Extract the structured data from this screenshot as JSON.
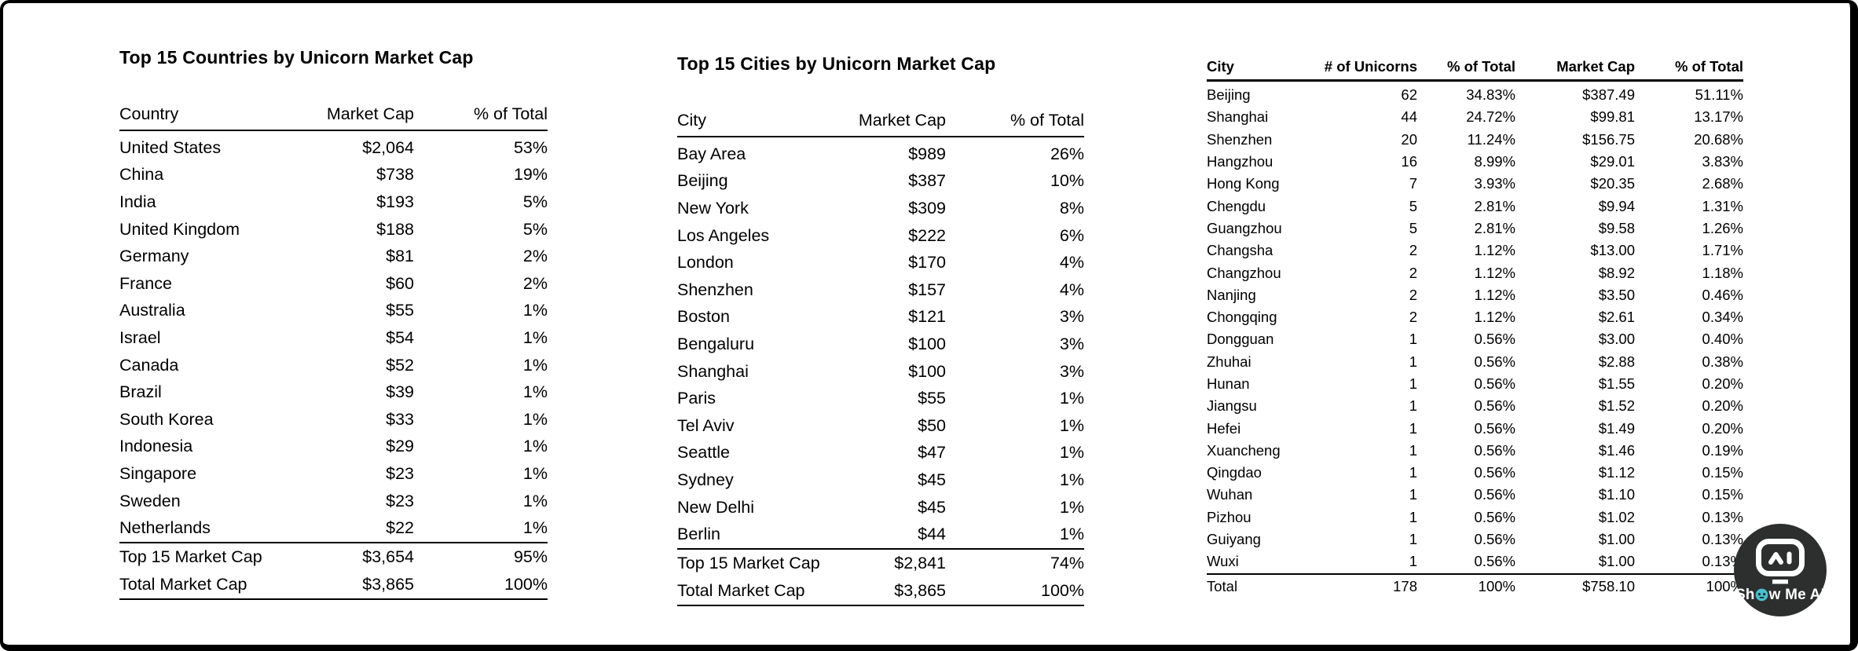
{
  "colors": {
    "background": "#ffffff",
    "frame": "#000000",
    "text": "#000000"
  },
  "chart_data": [
    {
      "type": "table",
      "title": "Top 15 Countries by Unicorn Market Cap",
      "columns": [
        "Country",
        "Market Cap",
        "% of Total"
      ],
      "rows": [
        [
          "United States",
          "$2,064",
          "53%"
        ],
        [
          "China",
          "$738",
          "19%"
        ],
        [
          "India",
          "$193",
          "5%"
        ],
        [
          "United Kingdom",
          "$188",
          "5%"
        ],
        [
          "Germany",
          "$81",
          "2%"
        ],
        [
          "France",
          "$60",
          "2%"
        ],
        [
          "Australia",
          "$55",
          "1%"
        ],
        [
          "Israel",
          "$54",
          "1%"
        ],
        [
          "Canada",
          "$52",
          "1%"
        ],
        [
          "Brazil",
          "$39",
          "1%"
        ],
        [
          "South Korea",
          "$33",
          "1%"
        ],
        [
          "Indonesia",
          "$29",
          "1%"
        ],
        [
          "Singapore",
          "$23",
          "1%"
        ],
        [
          "Sweden",
          "$23",
          "1%"
        ],
        [
          "Netherlands",
          "$22",
          "1%"
        ]
      ],
      "summary_rows": [
        [
          "Top 15 Market Cap",
          "$3,654",
          "95%"
        ],
        [
          "Total Market Cap",
          "$3,865",
          "100%"
        ]
      ]
    },
    {
      "type": "table",
      "title": "Top 15 Cities by Unicorn Market Cap",
      "columns": [
        "City",
        "Market Cap",
        "% of Total"
      ],
      "rows": [
        [
          "Bay Area",
          "$989",
          "26%"
        ],
        [
          "Beijing",
          "$387",
          "10%"
        ],
        [
          "New York",
          "$309",
          "8%"
        ],
        [
          "Los Angeles",
          "$222",
          "6%"
        ],
        [
          "London",
          "$170",
          "4%"
        ],
        [
          "Shenzhen",
          "$157",
          "4%"
        ],
        [
          "Boston",
          "$121",
          "3%"
        ],
        [
          "Bengaluru",
          "$100",
          "3%"
        ],
        [
          "Shanghai",
          "$100",
          "3%"
        ],
        [
          "Paris",
          "$55",
          "1%"
        ],
        [
          "Tel Aviv",
          "$50",
          "1%"
        ],
        [
          "Seattle",
          "$47",
          "1%"
        ],
        [
          "Sydney",
          "$45",
          "1%"
        ],
        [
          "New Delhi",
          "$45",
          "1%"
        ],
        [
          "Berlin",
          "$44",
          "1%"
        ]
      ],
      "summary_rows": [
        [
          "Top 15 Market Cap",
          "$2,841",
          "74%"
        ],
        [
          "Total Market Cap",
          "$3,865",
          "100%"
        ]
      ]
    },
    {
      "type": "table",
      "title": "",
      "columns": [
        "City",
        "# of Unicorns",
        "% of Total",
        "Market Cap",
        "% of Total"
      ],
      "rows": [
        [
          "Beijing",
          "62",
          "34.83%",
          "$387.49",
          "51.11%"
        ],
        [
          "Shanghai",
          "44",
          "24.72%",
          "$99.81",
          "13.17%"
        ],
        [
          "Shenzhen",
          "20",
          "11.24%",
          "$156.75",
          "20.68%"
        ],
        [
          "Hangzhou",
          "16",
          "8.99%",
          "$29.01",
          "3.83%"
        ],
        [
          "Hong Kong",
          "7",
          "3.93%",
          "$20.35",
          "2.68%"
        ],
        [
          "Chengdu",
          "5",
          "2.81%",
          "$9.94",
          "1.31%"
        ],
        [
          "Guangzhou",
          "5",
          "2.81%",
          "$9.58",
          "1.26%"
        ],
        [
          "Changsha",
          "2",
          "1.12%",
          "$13.00",
          "1.71%"
        ],
        [
          "Changzhou",
          "2",
          "1.12%",
          "$8.92",
          "1.18%"
        ],
        [
          "Nanjing",
          "2",
          "1.12%",
          "$3.50",
          "0.46%"
        ],
        [
          "Chongqing",
          "2",
          "1.12%",
          "$2.61",
          "0.34%"
        ],
        [
          "Dongguan",
          "1",
          "0.56%",
          "$3.00",
          "0.40%"
        ],
        [
          "Zhuhai",
          "1",
          "0.56%",
          "$2.88",
          "0.38%"
        ],
        [
          "Hunan",
          "1",
          "0.56%",
          "$1.55",
          "0.20%"
        ],
        [
          "Jiangsu",
          "1",
          "0.56%",
          "$1.52",
          "0.20%"
        ],
        [
          "Hefei",
          "1",
          "0.56%",
          "$1.49",
          "0.20%"
        ],
        [
          "Xuancheng",
          "1",
          "0.56%",
          "$1.46",
          "0.19%"
        ],
        [
          "Qingdao",
          "1",
          "0.56%",
          "$1.12",
          "0.15%"
        ],
        [
          "Wuhan",
          "1",
          "0.56%",
          "$1.10",
          "0.15%"
        ],
        [
          "Pizhou",
          "1",
          "0.56%",
          "$1.02",
          "0.13%"
        ],
        [
          "Guiyang",
          "1",
          "0.56%",
          "$1.00",
          "0.13%"
        ],
        [
          "Wuxi",
          "1",
          "0.56%",
          "$1.00",
          "0.13%"
        ]
      ],
      "summary_rows": [
        [
          "Total",
          "178",
          "100%",
          "$758.10",
          "100%"
        ]
      ]
    }
  ],
  "logo": {
    "label": "Show Me AI",
    "part1": "Sh",
    "part2": "w Me AI",
    "circle_color": "#2d2f2f",
    "accent_color": "#46c1d1",
    "text_color": "#ffffff"
  }
}
